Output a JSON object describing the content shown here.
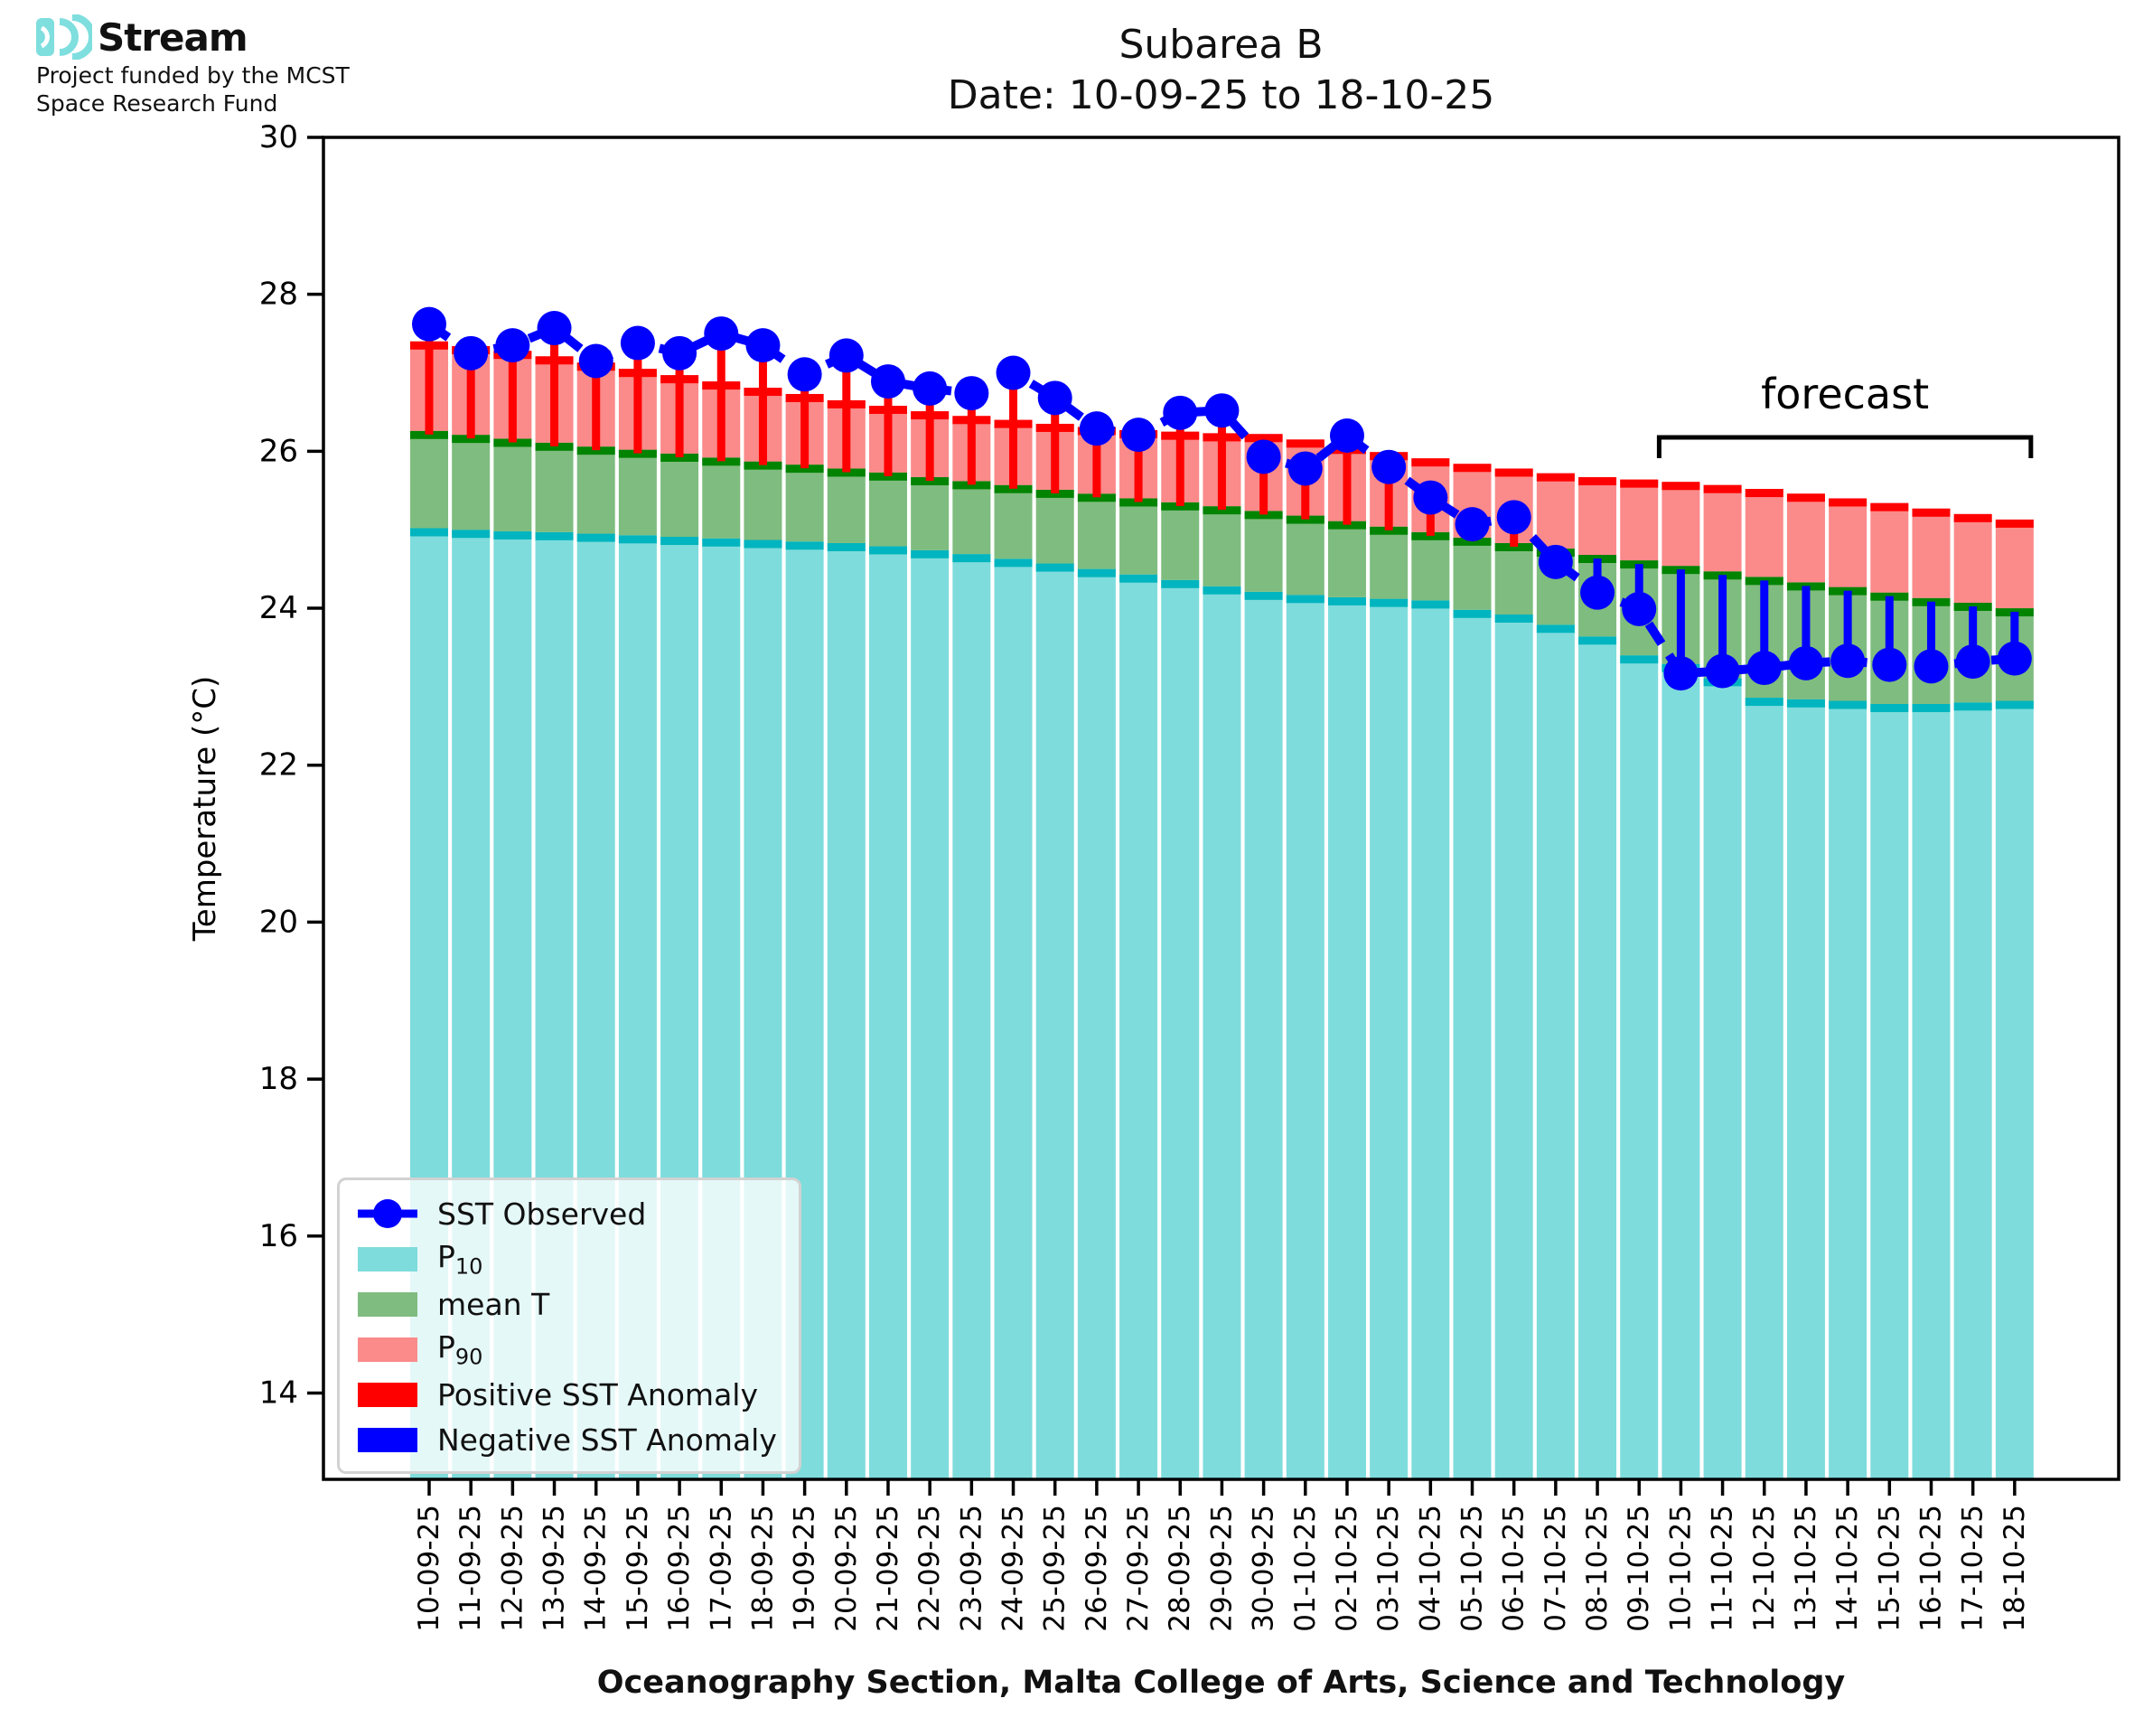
{
  "branding": {
    "name": "Stream",
    "funding_line1": "Project funded by the MCST",
    "funding_line2": "Space Research Fund"
  },
  "header": {
    "title": "Subarea B",
    "subtitle": "Date: 10-09-25 to 18-10-25"
  },
  "footer": {
    "text": "Oceanography Section, Malta College of Arts, Science and Technology"
  },
  "legend": {
    "sst": "SST Observed",
    "p10_main": "P",
    "p10_sub": "10",
    "mean": "mean T",
    "p90_main": "P",
    "p90_sub": "90",
    "positive": "Positive SST Anomaly",
    "negative": "Negative SST Anomaly"
  },
  "annotations": {
    "forecast_label": "forecast",
    "forecast_start": "10-10-25",
    "forecast_end": "18-10-25"
  },
  "colors": {
    "observed": "#0000ff",
    "p10_fill": "#7edcdc",
    "p10_line": "#00b5bf",
    "mean_fill": "#7fbc7f",
    "mean_line": "#028402",
    "p90_fill": "#fb8a8a",
    "p90_line": "#ff0000",
    "positive_anomaly": "#ff0000",
    "negative_anomaly": "#0000ff",
    "axis": "#000000",
    "brand_teal": "#7fdede"
  },
  "chart_data": {
    "type": "composite-bar-line",
    "title": "Subarea B",
    "subtitle": "Date: 10-09-25 to 18-10-25",
    "ylabel": "Temperature (°C)",
    "xlabel": "Oceanography Section, Malta College of Arts, Science and Technology",
    "ylim": [
      12.9,
      30
    ],
    "yticks": [
      30,
      28,
      26,
      24,
      22,
      20,
      18,
      16,
      14
    ],
    "grid": false,
    "legend_position": "lower left",
    "categories": [
      "10-09-25",
      "11-09-25",
      "12-09-25",
      "13-09-25",
      "14-09-25",
      "15-09-25",
      "16-09-25",
      "17-09-25",
      "18-09-25",
      "19-09-25",
      "20-09-25",
      "21-09-25",
      "22-09-25",
      "23-09-25",
      "24-09-25",
      "25-09-25",
      "26-09-25",
      "27-09-25",
      "28-09-25",
      "29-09-25",
      "30-09-25",
      "01-10-25",
      "02-10-25",
      "03-10-25",
      "04-10-25",
      "05-10-25",
      "06-10-25",
      "07-10-25",
      "08-10-25",
      "09-10-25",
      "10-10-25",
      "11-10-25",
      "12-10-25",
      "13-10-25",
      "14-10-25",
      "15-10-25",
      "16-10-25",
      "17-10-25",
      "18-10-25"
    ],
    "series": [
      {
        "key": "observed",
        "name": "SST Observed",
        "type": "line-markers-dashed",
        "values": [
          27.62,
          27.25,
          27.35,
          27.57,
          27.15,
          27.38,
          27.25,
          27.5,
          27.35,
          26.98,
          27.22,
          26.89,
          26.8,
          26.74,
          27.0,
          26.68,
          26.29,
          26.21,
          26.49,
          26.52,
          25.93,
          25.78,
          26.2,
          25.8,
          25.41,
          25.07,
          25.16,
          24.59,
          24.2,
          23.99,
          23.17,
          23.2,
          23.24,
          23.3,
          23.33,
          23.28,
          23.26,
          23.32,
          23.36
        ]
      },
      {
        "key": "p90",
        "name": "P90",
        "type": "bar-top",
        "values": [
          27.4,
          27.34,
          27.28,
          27.21,
          27.13,
          27.05,
          26.97,
          26.89,
          26.81,
          26.73,
          26.65,
          26.58,
          26.51,
          26.45,
          26.4,
          26.35,
          26.31,
          26.27,
          26.25,
          26.23,
          26.22,
          26.15,
          26.07,
          25.99,
          25.91,
          25.84,
          25.78,
          25.72,
          25.67,
          25.64,
          25.61,
          25.57,
          25.52,
          25.46,
          25.4,
          25.34,
          25.27,
          25.2,
          25.13
        ]
      },
      {
        "key": "mean_t",
        "name": "mean T",
        "type": "bar-top",
        "values": [
          26.26,
          26.21,
          26.16,
          26.11,
          26.06,
          26.02,
          25.97,
          25.92,
          25.87,
          25.83,
          25.78,
          25.73,
          25.67,
          25.62,
          25.57,
          25.51,
          25.46,
          25.4,
          25.35,
          25.3,
          25.24,
          25.18,
          25.11,
          25.04,
          24.97,
          24.9,
          24.83,
          24.76,
          24.68,
          24.61,
          24.54,
          24.47,
          24.4,
          24.33,
          24.27,
          24.2,
          24.13,
          24.07,
          24.0
        ]
      },
      {
        "key": "p10",
        "name": "P10",
        "type": "bar-top",
        "values": [
          25.02,
          25.0,
          24.98,
          24.97,
          24.95,
          24.93,
          24.91,
          24.89,
          24.87,
          24.85,
          24.83,
          24.79,
          24.74,
          24.69,
          24.63,
          24.57,
          24.5,
          24.43,
          24.36,
          24.28,
          24.21,
          24.17,
          24.14,
          24.12,
          24.1,
          23.98,
          23.92,
          23.79,
          23.64,
          23.4,
          23.29,
          23.11,
          22.86,
          22.84,
          22.82,
          22.78,
          22.78,
          22.8,
          22.82
        ]
      }
    ],
    "anomaly_rule": "positive where observed >= mean T (red), negative where observed < mean T (blue), drawn from mean T to observed"
  }
}
